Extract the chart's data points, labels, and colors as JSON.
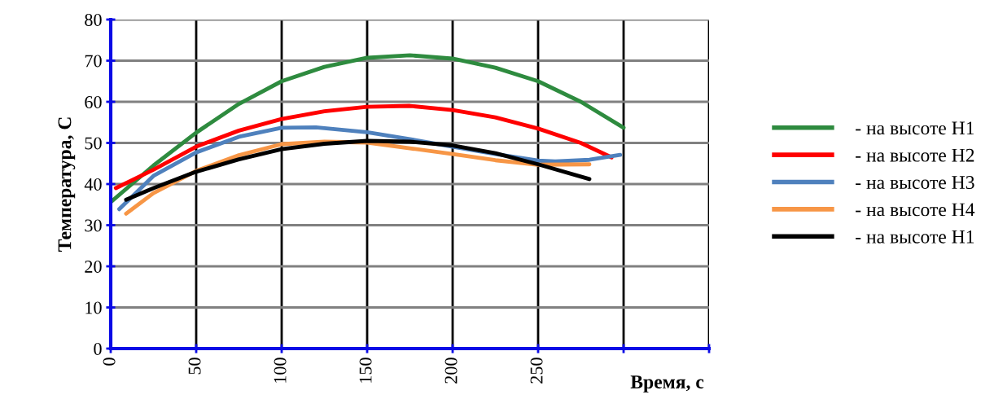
{
  "chart_data": {
    "type": "line",
    "xlabel": "Время, с",
    "ylabel": "Температура, С",
    "xlim": [
      0,
      350
    ],
    "xticks": [
      0,
      50,
      100,
      150,
      200,
      250,
      {
        "value": 300,
        "label": null
      },
      {
        "value": 350,
        "label": null
      }
    ],
    "ylim": [
      0,
      80
    ],
    "yticks": [
      0,
      10,
      20,
      30,
      40,
      50,
      60,
      70,
      80
    ],
    "grid": true,
    "legend": "right",
    "marker": "none",
    "line_style": "solid",
    "series": [
      {
        "name": "- на высоте Н1",
        "color": "#2e8b3f",
        "x": [
          0,
          25,
          50,
          75,
          100,
          125,
          150,
          175,
          200,
          225,
          250,
          275,
          300
        ],
        "values": [
          35.6,
          44.5,
          52.5,
          59.5,
          65,
          68.5,
          70.7,
          71.3,
          70.5,
          68.3,
          65,
          60,
          53.7
        ]
      },
      {
        "name": "- на высоте Н2",
        "color": "#ff0000",
        "x": [
          3,
          25,
          50,
          75,
          100,
          125,
          150,
          175,
          200,
          225,
          250,
          275,
          293
        ],
        "values": [
          39,
          43.5,
          49.1,
          53,
          55.8,
          57.7,
          58.8,
          59,
          58,
          56.2,
          53.5,
          50,
          46.5
        ]
      },
      {
        "name": "- на высоте Н3",
        "color": "#4f81bd",
        "x": [
          5,
          25,
          50,
          75,
          100,
          120,
          150,
          175,
          200,
          225,
          250,
          260,
          280,
          298
        ],
        "values": [
          33.9,
          42,
          47.7,
          51.5,
          53.7,
          53.8,
          52.6,
          50.9,
          49.1,
          47.3,
          45.7,
          45.5,
          45.9,
          47.1
        ]
      },
      {
        "name": "- на высоте Н4",
        "color": "#f79646",
        "x": [
          9,
          25,
          50,
          75,
          100,
          125,
          150,
          175,
          200,
          225,
          250,
          280
        ],
        "values": [
          32.8,
          37.8,
          43.2,
          47,
          49.7,
          50.3,
          50.1,
          48.7,
          47.3,
          45.8,
          44.7,
          44.8
        ]
      },
      {
        "name": "- на высоте Н1",
        "color": "#000000",
        "x": [
          9,
          25,
          50,
          75,
          100,
          125,
          150,
          175,
          200,
          225,
          250,
          280
        ],
        "values": [
          36.2,
          39,
          43,
          46,
          48.5,
          49.8,
          50.5,
          50.3,
          49.4,
          47.5,
          44.8,
          41.2
        ]
      }
    ]
  }
}
